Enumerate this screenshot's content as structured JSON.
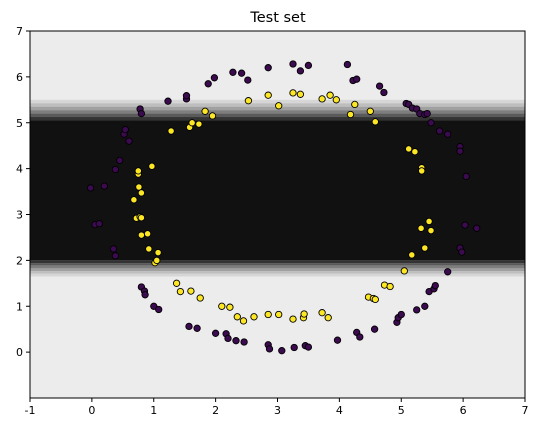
{
  "chart_data": {
    "type": "scatter",
    "title": "Test set",
    "xlabel": "",
    "ylabel": "",
    "xlim": [
      -1,
      7
    ],
    "ylim": [
      -1,
      7
    ],
    "x_ticks": [
      -1,
      0,
      1,
      2,
      3,
      4,
      5,
      6,
      7
    ],
    "y_ticks": [
      0,
      1,
      2,
      3,
      4,
      5,
      6,
      7
    ],
    "grid": false,
    "background": {
      "kind": "decision-function-bands",
      "outside_color": "#ececec",
      "inside_color": "#111111",
      "band_color_steps": [
        "#d6d6d6",
        "#bebebe",
        "#a0a0a0",
        "#7e7e7e",
        "#5a5a5a",
        "#333333"
      ],
      "inner_y_range": [
        2.0,
        5.05
      ],
      "upper_band_y_range": [
        5.05,
        5.5
      ],
      "lower_band_y_range": [
        1.65,
        2.0
      ]
    },
    "series": [
      {
        "class": 0,
        "color": "#3b0a4f",
        "edge": "#000000",
        "points": [
          [
            -0.02,
            3.58
          ],
          [
            0.05,
            2.78
          ],
          [
            0.12,
            2.8
          ],
          [
            0.2,
            3.62
          ],
          [
            0.35,
            2.25
          ],
          [
            0.38,
            2.1
          ],
          [
            0.38,
            3.98
          ],
          [
            0.45,
            4.18
          ],
          [
            0.52,
            4.75
          ],
          [
            0.54,
            4.85
          ],
          [
            0.6,
            4.6
          ],
          [
            0.78,
            5.3
          ],
          [
            0.8,
            5.2
          ],
          [
            0.8,
            1.42
          ],
          [
            0.85,
            1.33
          ],
          [
            0.86,
            1.25
          ],
          [
            1.0,
            1.0
          ],
          [
            1.08,
            0.93
          ],
          [
            1.23,
            5.47
          ],
          [
            1.53,
            5.52
          ],
          [
            1.53,
            5.59
          ],
          [
            1.57,
            0.56
          ],
          [
            1.7,
            0.52
          ],
          [
            1.88,
            5.85
          ],
          [
            1.98,
            5.98
          ],
          [
            2.0,
            0.41
          ],
          [
            2.17,
            0.4
          ],
          [
            2.2,
            0.3
          ],
          [
            2.28,
            6.1
          ],
          [
            2.33,
            0.25
          ],
          [
            2.42,
            6.08
          ],
          [
            2.46,
            0.22
          ],
          [
            2.52,
            5.93
          ],
          [
            2.85,
            6.2
          ],
          [
            2.85,
            0.16
          ],
          [
            2.87,
            0.07
          ],
          [
            3.07,
            0.03
          ],
          [
            3.25,
            6.28
          ],
          [
            3.27,
            0.1
          ],
          [
            3.37,
            6.13
          ],
          [
            3.45,
            0.14
          ],
          [
            3.5,
            6.25
          ],
          [
            3.5,
            0.11
          ],
          [
            3.97,
            0.26
          ],
          [
            4.13,
            6.27
          ],
          [
            4.22,
            5.92
          ],
          [
            4.28,
            5.95
          ],
          [
            4.28,
            0.43
          ],
          [
            4.33,
            0.33
          ],
          [
            4.57,
            0.5
          ],
          [
            4.65,
            5.8
          ],
          [
            4.72,
            5.66
          ],
          [
            4.93,
            0.65
          ],
          [
            4.95,
            0.75
          ],
          [
            5.0,
            0.82
          ],
          [
            5.08,
            5.42
          ],
          [
            5.12,
            5.4
          ],
          [
            5.18,
            5.32
          ],
          [
            5.25,
            5.3
          ],
          [
            5.25,
            0.92
          ],
          [
            5.3,
            5.2
          ],
          [
            5.38,
            5.18
          ],
          [
            5.38,
            1.0
          ],
          [
            5.42,
            5.2
          ],
          [
            5.45,
            1.32
          ],
          [
            5.48,
            5.0
          ],
          [
            5.53,
            1.38
          ],
          [
            5.55,
            1.45
          ],
          [
            5.62,
            4.82
          ],
          [
            5.75,
            4.75
          ],
          [
            5.75,
            1.75
          ],
          [
            5.95,
            4.48
          ],
          [
            5.95,
            4.38
          ],
          [
            5.95,
            2.27
          ],
          [
            5.98,
            2.18
          ],
          [
            6.03,
            2.77
          ],
          [
            6.05,
            3.83
          ],
          [
            6.22,
            2.7
          ]
        ]
      },
      {
        "class": 1,
        "color": "#fde725",
        "edge": "#000000",
        "points": [
          [
            0.68,
            3.32
          ],
          [
            0.72,
            2.92
          ],
          [
            0.75,
            3.88
          ],
          [
            0.75,
            3.95
          ],
          [
            0.76,
            3.6
          ],
          [
            0.78,
            2.95
          ],
          [
            0.8,
            2.93
          ],
          [
            0.8,
            3.47
          ],
          [
            0.8,
            2.55
          ],
          [
            0.9,
            2.58
          ],
          [
            0.92,
            2.25
          ],
          [
            0.97,
            4.05
          ],
          [
            1.02,
            1.95
          ],
          [
            1.05,
            2.0
          ],
          [
            1.07,
            2.17
          ],
          [
            1.28,
            4.82
          ],
          [
            1.37,
            1.5
          ],
          [
            1.43,
            1.32
          ],
          [
            1.58,
            4.9
          ],
          [
            1.6,
            1.33
          ],
          [
            1.62,
            5.0
          ],
          [
            1.73,
            4.97
          ],
          [
            1.75,
            1.18
          ],
          [
            1.83,
            5.25
          ],
          [
            1.95,
            5.15
          ],
          [
            2.1,
            1.0
          ],
          [
            2.23,
            0.98
          ],
          [
            2.35,
            0.77
          ],
          [
            2.45,
            0.68
          ],
          [
            2.53,
            5.48
          ],
          [
            2.62,
            0.77
          ],
          [
            2.85,
            5.6
          ],
          [
            2.85,
            0.82
          ],
          [
            3.02,
            0.82
          ],
          [
            3.02,
            5.37
          ],
          [
            3.25,
            0.72
          ],
          [
            3.25,
            5.65
          ],
          [
            3.37,
            5.62
          ],
          [
            3.42,
            0.75
          ],
          [
            3.43,
            0.83
          ],
          [
            3.72,
            5.52
          ],
          [
            3.72,
            0.86
          ],
          [
            3.82,
            0.75
          ],
          [
            3.85,
            5.6
          ],
          [
            3.95,
            5.5
          ],
          [
            4.18,
            5.18
          ],
          [
            4.25,
            5.4
          ],
          [
            4.47,
            1.2
          ],
          [
            4.5,
            5.25
          ],
          [
            4.55,
            1.17
          ],
          [
            4.58,
            1.15
          ],
          [
            4.58,
            5.02
          ],
          [
            4.73,
            1.46
          ],
          [
            4.82,
            1.43
          ],
          [
            5.05,
            1.77
          ],
          [
            5.12,
            4.43
          ],
          [
            5.17,
            2.12
          ],
          [
            5.22,
            4.37
          ],
          [
            5.32,
            2.7
          ],
          [
            5.33,
            4.02
          ],
          [
            5.33,
            3.95
          ],
          [
            5.38,
            2.27
          ],
          [
            5.45,
            2.85
          ],
          [
            5.48,
            2.65
          ]
        ]
      }
    ]
  }
}
